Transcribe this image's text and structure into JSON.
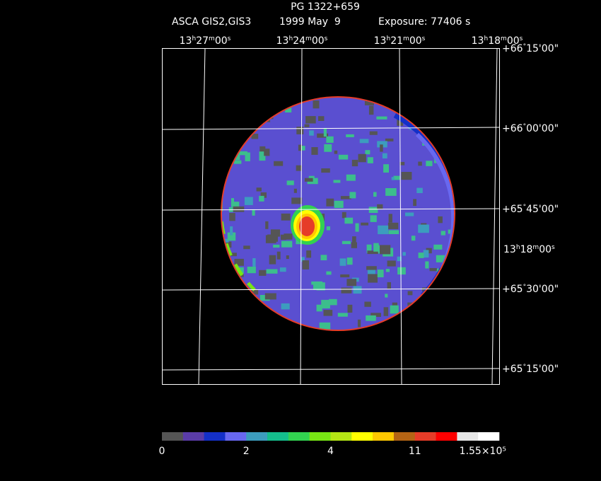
{
  "header": {
    "title": "PG 1322+659",
    "instrument": "ASCA GIS2,GIS3",
    "date": "1999 May  9",
    "exposure": "Exposure: 77406 s"
  },
  "image": {
    "ra_labels": [
      "13h27m00s",
      "13h24m00s",
      "13h21m00s",
      "13h18m00s"
    ],
    "dec_labels": [
      "+66°15'00\"",
      "+66°00'00\"",
      "+65°45'00\"",
      "+65°30'00\"",
      "+65°15'00\""
    ],
    "side_ra_label": "13h18m00s"
  },
  "colorbar": {
    "colors": [
      "#555555",
      "#5a3ca8",
      "#1430c8",
      "#6868f0",
      "#3c9cbe",
      "#14be8c",
      "#32d250",
      "#78e614",
      "#b4e614",
      "#ffff00",
      "#ffc800",
      "#b46414",
      "#e63c28",
      "#ff0000",
      "#e6e6e6",
      "#ffffff"
    ],
    "ticks": [
      0,
      2,
      4,
      11,
      {
        "value": 155000,
        "label": "1.55×10⁵"
      }
    ]
  }
}
